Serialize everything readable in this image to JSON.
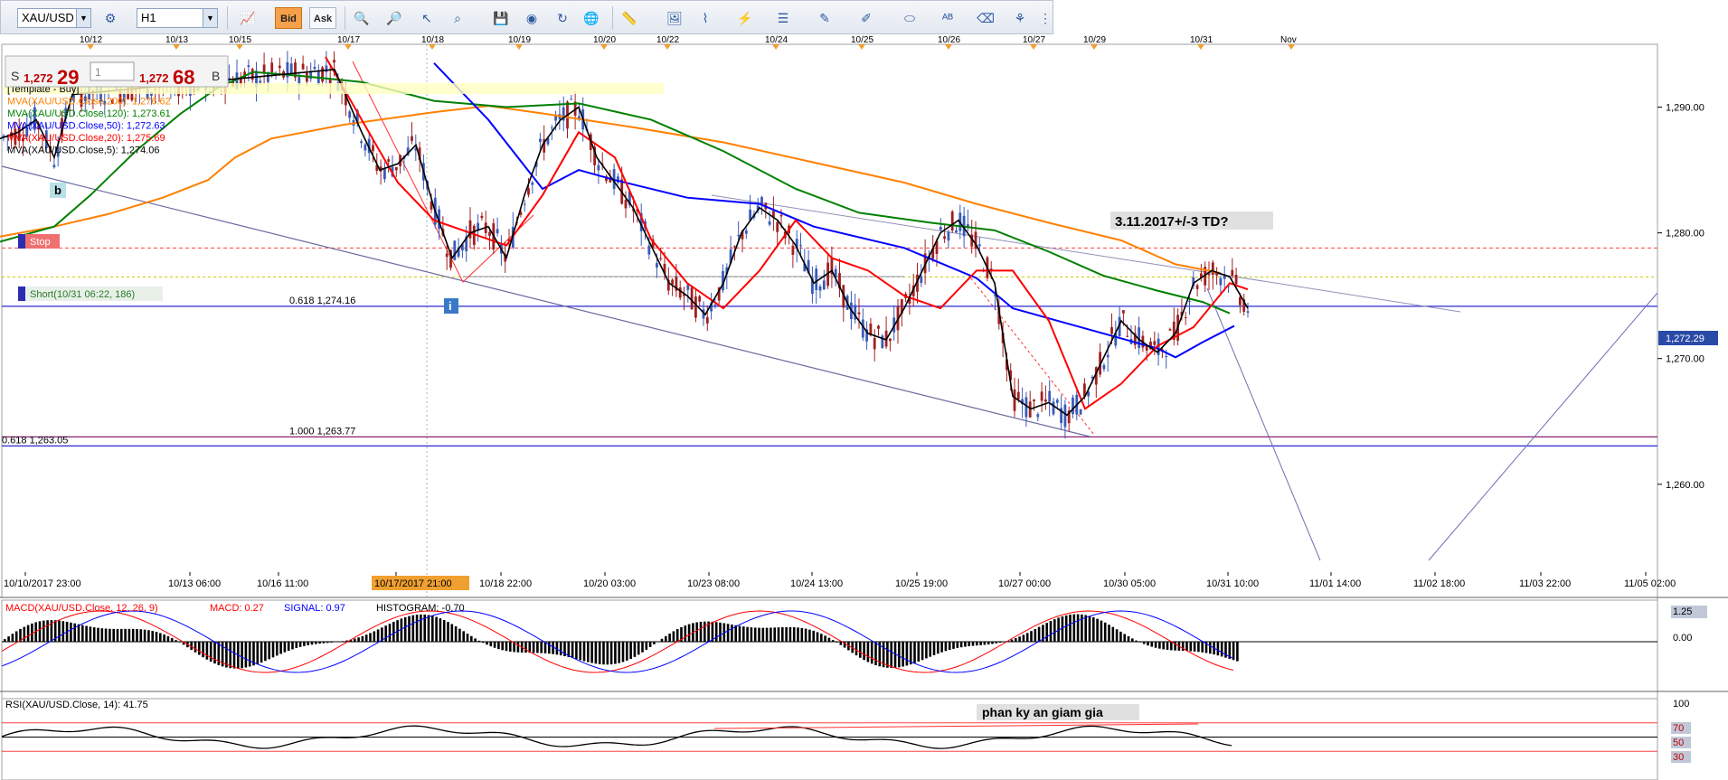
{
  "toolbar": {
    "symbol": "XAU/USD",
    "timeframe": "H1",
    "bid_label": "Bid",
    "ask_label": "Ask",
    "icons": [
      "settings-icon",
      "crosshair-icon",
      "zoom-in-icon",
      "zoom-out-icon",
      "cursor-icon",
      "zoom-area-icon",
      "save-icon",
      "eye-icon",
      "globe-icon",
      "ruler-icon",
      "picture-icon",
      "gann-icon",
      "lines-icon",
      "trendline-icon",
      "pen-icon",
      "ellipse-icon",
      "text-icon",
      "eraser-icon",
      "tree-icon",
      "more-icon"
    ]
  },
  "chart_data": [
    {
      "type": "line",
      "symbol": "XAU/USD",
      "timeframe": "H1",
      "top_dates": [
        "10/12",
        "10/13",
        "10/15",
        "10/17",
        "10/18",
        "10/19",
        "10/20",
        "10/22",
        "10/24",
        "10/25",
        "10/26",
        "10/27",
        "10/29",
        "10/31",
        "Nov"
      ],
      "x_ticks": [
        "10/10/2017 23:00",
        "10/13 06:00",
        "10/16 11:00",
        "10/17/2017 21:00",
        "10/18 22:00",
        "10/20 03:00",
        "10/23 08:00",
        "10/24 13:00",
        "10/25 19:00",
        "10/27 00:00",
        "10/30 05:00",
        "10/31 10:00",
        "11/01 14:00",
        "11/02 18:00",
        "11/03 22:00",
        "11/05 02:00"
      ],
      "highlighted_x_tick": "10/17/2017 21:00",
      "y_ticks": [
        "1,290.00",
        "1,280.00",
        "1,270.00",
        "1,260.00"
      ],
      "ylim": [
        1251,
        1295
      ],
      "current_price": "1,272.29",
      "price_panel": {
        "sell_prefix": "S",
        "sell_price": "1,272",
        "sell_big": "29",
        "buy_price": "1,272",
        "buy_big": "68",
        "buy_suffix": "B",
        "lot": "1"
      },
      "legend": [
        {
          "text": "[Template - Buy]",
          "color": "#000000"
        },
        {
          "text": "MVA(XAU/USD.Close,200): 1,276.62",
          "color": "#ff8000"
        },
        {
          "text": "MVA(XAU/USD.Close,120): 1,273.61",
          "color": "#008000"
        },
        {
          "text": "MVA(XAU/USD.Close,50): 1,272.63",
          "color": "#0000ff"
        },
        {
          "text": "MVA(XAU/USD.Close,20): 1,275.69",
          "color": "#ff0000"
        },
        {
          "text": "MVA(XAU/USD.Close,5): 1,274.06",
          "color": "#000000"
        }
      ],
      "series": [
        {
          "name": "MVA(XAU/USD.Close,200)",
          "color": "#ff8000",
          "points": [
            [
              0,
              1279.7
            ],
            [
              60,
              1280.5
            ],
            [
              120,
              1281.5
            ],
            [
              180,
              1282.8
            ],
            [
              230,
              1284.2
            ],
            [
              260,
              1286
            ],
            [
              300,
              1287.5
            ],
            [
              380,
              1288.6
            ],
            [
              480,
              1289.6
            ],
            [
              540,
              1290.1
            ],
            [
              600,
              1289.5
            ],
            [
              700,
              1288.4
            ],
            [
              800,
              1287.2
            ],
            [
              900,
              1285.6
            ],
            [
              1000,
              1284
            ],
            [
              1080,
              1282.3
            ],
            [
              1160,
              1280.8
            ],
            [
              1240,
              1279.4
            ],
            [
              1300,
              1277.5
            ],
            [
              1350,
              1276.8
            ]
          ]
        },
        {
          "name": "MVA(XAU/USD.Close,120)",
          "color": "#008000",
          "points": [
            [
              0,
              1279.3
            ],
            [
              60,
              1280.5
            ],
            [
              100,
              1283
            ],
            [
              150,
              1286.5
            ],
            [
              200,
              1289.5
            ],
            [
              240,
              1291.5
            ],
            [
              280,
              1292.8
            ],
            [
              330,
              1292.5
            ],
            [
              400,
              1292
            ],
            [
              480,
              1290.5
            ],
            [
              560,
              1290
            ],
            [
              640,
              1290.3
            ],
            [
              720,
              1289
            ],
            [
              800,
              1286.5
            ],
            [
              880,
              1283.5
            ],
            [
              950,
              1281.6
            ],
            [
              1030,
              1280.8
            ],
            [
              1100,
              1280.2
            ],
            [
              1160,
              1278.5
            ],
            [
              1220,
              1276.6
            ],
            [
              1280,
              1275.4
            ],
            [
              1330,
              1274.5
            ],
            [
              1360,
              1273.6
            ]
          ]
        },
        {
          "name": "MVA(XAU/USD.Close,50)",
          "color": "#0000ff",
          "points": [
            [
              480,
              1293.5
            ],
            [
              540,
              1289
            ],
            [
              600,
              1283.5
            ],
            [
              640,
              1285
            ],
            [
              680,
              1284.2
            ],
            [
              760,
              1282.8
            ],
            [
              840,
              1282.3
            ],
            [
              900,
              1280.5
            ],
            [
              1000,
              1278.8
            ],
            [
              1080,
              1276.4
            ],
            [
              1120,
              1274
            ],
            [
              1180,
              1272.8
            ],
            [
              1240,
              1271.6
            ],
            [
              1280,
              1270.8
            ],
            [
              1300,
              1270.1
            ],
            [
              1330,
              1271.3
            ],
            [
              1365,
              1272.6
            ]
          ]
        },
        {
          "name": "MVA(XAU/USD.Close,20)",
          "color": "#ff0000",
          "points": [
            [
              360,
              1294
            ],
            [
              400,
              1289
            ],
            [
              440,
              1284
            ],
            [
              480,
              1281
            ],
            [
              520,
              1280
            ],
            [
              560,
              1279
            ],
            [
              600,
              1283
            ],
            [
              640,
              1288
            ],
            [
              680,
              1286
            ],
            [
              720,
              1279.5
            ],
            [
              760,
              1276
            ],
            [
              800,
              1274
            ],
            [
              840,
              1277
            ],
            [
              880,
              1281
            ],
            [
              920,
              1278
            ],
            [
              960,
              1277
            ],
            [
              1000,
              1275
            ],
            [
              1040,
              1274
            ],
            [
              1080,
              1277
            ],
            [
              1120,
              1277
            ],
            [
              1160,
              1273
            ],
            [
              1200,
              1266
            ],
            [
              1240,
              1268
            ],
            [
              1280,
              1271
            ],
            [
              1320,
              1272.5
            ],
            [
              1360,
              1276
            ],
            [
              1380,
              1275.5
            ]
          ]
        },
        {
          "name": "MVA(XAU/USD.Close,5)",
          "color": "#000000",
          "points": [
            [
              0,
              1287.5
            ],
            [
              20,
              1288
            ],
            [
              40,
              1289
            ],
            [
              60,
              1286
            ],
            [
              80,
              1291
            ],
            [
              370,
              1293
            ],
            [
              400,
              1288
            ],
            [
              420,
              1285
            ],
            [
              440,
              1285.5
            ],
            [
              460,
              1287
            ],
            [
              480,
              1282
            ],
            [
              500,
              1278
            ],
            [
              520,
              1280
            ],
            [
              540,
              1280.5
            ],
            [
              560,
              1278
            ],
            [
              580,
              1283
            ],
            [
              600,
              1287
            ],
            [
              620,
              1289
            ],
            [
              640,
              1290
            ],
            [
              660,
              1286
            ],
            [
              680,
              1284
            ],
            [
              700,
              1282
            ],
            [
              720,
              1279
            ],
            [
              740,
              1276
            ],
            [
              760,
              1275
            ],
            [
              780,
              1273.5
            ],
            [
              800,
              1276
            ],
            [
              820,
              1280
            ],
            [
              840,
              1282
            ],
            [
              860,
              1281
            ],
            [
              880,
              1279
            ],
            [
              900,
              1276
            ],
            [
              920,
              1277
            ],
            [
              940,
              1274
            ],
            [
              960,
              1272
            ],
            [
              980,
              1271.5
            ],
            [
              1000,
              1274
            ],
            [
              1020,
              1277
            ],
            [
              1040,
              1280
            ],
            [
              1060,
              1281
            ],
            [
              1080,
              1279
            ],
            [
              1100,
              1276
            ],
            [
              1120,
              1267
            ],
            [
              1140,
              1266
            ],
            [
              1160,
              1266.5
            ],
            [
              1180,
              1265.5
            ],
            [
              1200,
              1267
            ],
            [
              1220,
              1270
            ],
            [
              1240,
              1273
            ],
            [
              1260,
              1271.5
            ],
            [
              1280,
              1270.5
            ],
            [
              1300,
              1272
            ],
            [
              1320,
              1276
            ],
            [
              1340,
              1277
            ],
            [
              1360,
              1276.5
            ],
            [
              1380,
              1274
            ]
          ]
        }
      ],
      "levels": [
        {
          "label": "0.618 1,274.16",
          "value": 1274.16,
          "color": "#2a2ad4"
        },
        {
          "label": "1.000 1,263.77",
          "value": 1263.77,
          "color": "#8b2070"
        },
        {
          "label": "0.618 1,263.05",
          "value": 1263.05,
          "color": "#2a2ad4"
        }
      ],
      "stop_value": 1278.8,
      "annotations": {
        "stop": "Stop",
        "short": "Short(10/31 06:22, 186)",
        "forecast": "3.11.2017+/-3 TD?",
        "wave_b": "b",
        "wave_i": "i"
      }
    },
    {
      "type": "line",
      "title": "MACD(XAU/USD.Close, 12, 26, 9)",
      "legend": [
        {
          "text": "MACD(XAU/USD.Close, 12, 26, 9)",
          "color": "#ff0000"
        },
        {
          "text": "MACD: 0.27",
          "color": "#ff0000"
        },
        {
          "text": "SIGNAL: 0.97",
          "color": "#0000ff"
        },
        {
          "text": "HISTOGRAM: -0.70",
          "color": "#000000"
        }
      ],
      "y_ticks": [
        "1.25",
        "0.00"
      ]
    },
    {
      "type": "line",
      "title": "RSI(XAU/USD.Close, 14): 41.75",
      "legend": [
        {
          "text": "RSI(XAU/USD.Close, 14): 41.75",
          "color": "#000000"
        }
      ],
      "annotation": "phan ky an giam gia",
      "y_ticks": [
        "100",
        "70",
        "50",
        "30"
      ]
    }
  ]
}
